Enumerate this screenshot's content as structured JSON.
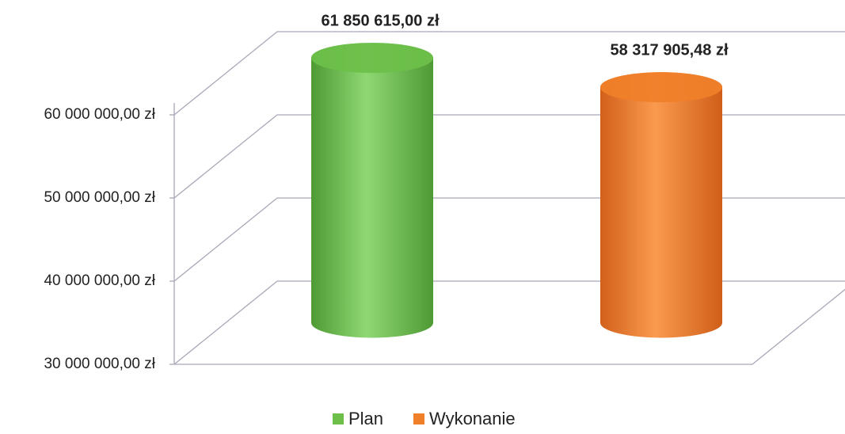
{
  "chart_data": {
    "type": "cylinder",
    "categories": [
      null
    ],
    "series": [
      {
        "name": "Plan",
        "color": "#6cc04a",
        "values": [
          61850615
        ],
        "value_labels": [
          "61 850 615,00 zł"
        ]
      },
      {
        "name": "Wykonanie",
        "color": "#f07f2a",
        "values": [
          58317905.48
        ],
        "value_labels": [
          "58 317 905,48 zł"
        ]
      }
    ],
    "ylim": [
      30000000,
      60000000
    ],
    "yticks": [
      {
        "value": 30000000,
        "label": "30 000 000,00 zł"
      },
      {
        "value": 40000000,
        "label": "40 000 000,00 zł"
      },
      {
        "value": 50000000,
        "label": "50 000 000,00 zł"
      },
      {
        "value": 60000000,
        "label": "60 000 000,00 zł"
      }
    ],
    "grid": true,
    "legend": "bottom"
  }
}
